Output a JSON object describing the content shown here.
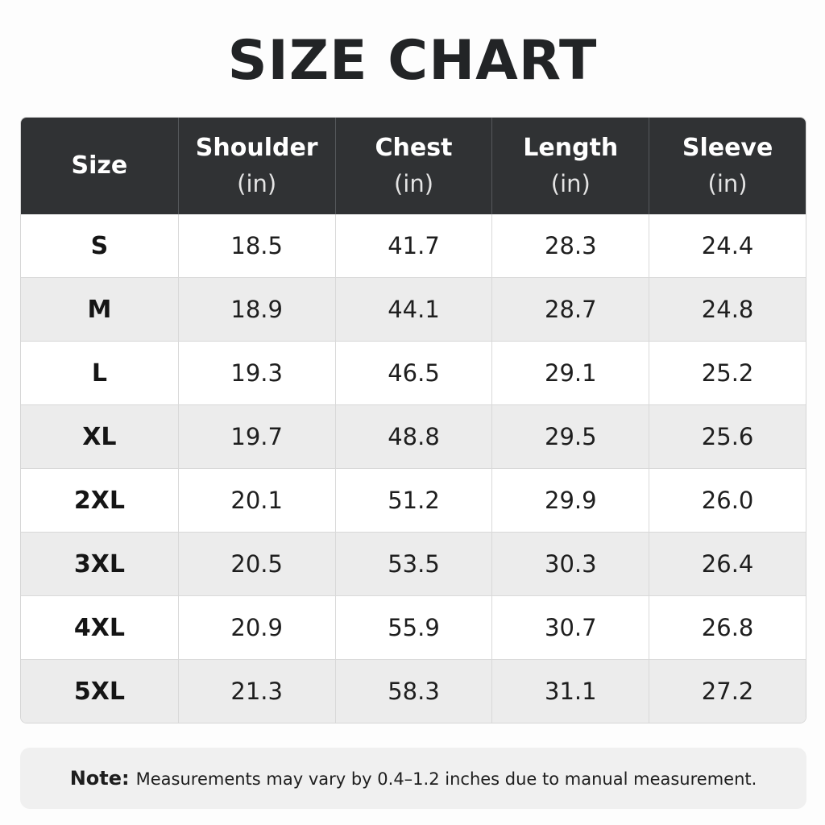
{
  "title": "SIZE CHART",
  "table": {
    "headers": [
      {
        "label": "Size",
        "unit": ""
      },
      {
        "label": "Shoulder",
        "unit": "(in)"
      },
      {
        "label": "Chest",
        "unit": "(in)"
      },
      {
        "label": "Length",
        "unit": "(in)"
      },
      {
        "label": "Sleeve",
        "unit": "(in)"
      }
    ],
    "rows": [
      [
        "S",
        "18.5",
        "41.7",
        "28.3",
        "24.4"
      ],
      [
        "M",
        "18.9",
        "44.1",
        "28.7",
        "24.8"
      ],
      [
        "L",
        "19.3",
        "46.5",
        "29.1",
        "25.2"
      ],
      [
        "XL",
        "19.7",
        "48.8",
        "29.5",
        "25.6"
      ],
      [
        "2XL",
        "20.1",
        "51.2",
        "29.9",
        "26.0"
      ],
      [
        "3XL",
        "20.5",
        "53.5",
        "30.3",
        "26.4"
      ],
      [
        "4XL",
        "20.9",
        "55.9",
        "30.7",
        "26.8"
      ],
      [
        "5XL",
        "21.3",
        "58.3",
        "31.1",
        "27.2"
      ]
    ]
  },
  "note": {
    "label": "Note:",
    "text": "Measurements may vary by 0.4–1.2 inches due to manual measurement."
  },
  "colors": {
    "header_background": "#303234",
    "row_alt_background": "#ececec",
    "title_color": "#222426"
  }
}
